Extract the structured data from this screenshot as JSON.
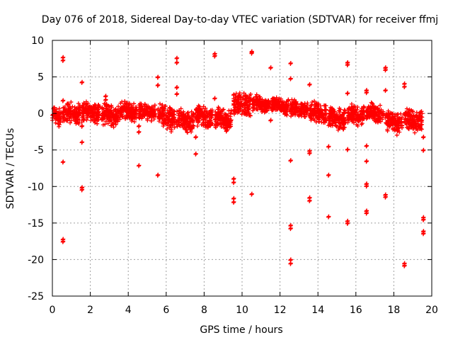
{
  "chart_data": {
    "type": "scatter",
    "title": "Day 076 of 2018, Sidereal Day-to-day VTEC variation (SDTVAR) for receiver ffmj",
    "xlabel": "GPS time / hours",
    "ylabel": "SDTVAR / TECUs",
    "xlim": [
      0,
      20
    ],
    "ylim": [
      -25,
      10
    ],
    "xticks": [
      0,
      2,
      4,
      6,
      8,
      10,
      12,
      14,
      16,
      18,
      20
    ],
    "yticks": [
      -25,
      -20,
      -15,
      -10,
      -5,
      0,
      5,
      10
    ],
    "grid": true,
    "marker": "plus",
    "color": "#ff0000",
    "band_segments": [
      {
        "x0": 0.0,
        "x1": 0.45,
        "center": -0.3,
        "spread": 1.5
      },
      {
        "x0": 0.55,
        "x1": 1.45,
        "center": 0.0,
        "spread": 1.6
      },
      {
        "x0": 1.55,
        "x1": 2.5,
        "center": 0.2,
        "spread": 1.5
      },
      {
        "x0": 2.6,
        "x1": 3.5,
        "center": -0.2,
        "spread": 1.7
      },
      {
        "x0": 3.55,
        "x1": 4.45,
        "center": 0.3,
        "spread": 1.4
      },
      {
        "x0": 4.55,
        "x1": 5.45,
        "center": 0.2,
        "spread": 1.2
      },
      {
        "x0": 5.55,
        "x1": 6.45,
        "center": -0.6,
        "spread": 1.8
      },
      {
        "x0": 6.55,
        "x1": 7.45,
        "center": -1.0,
        "spread": 1.6
      },
      {
        "x0": 7.55,
        "x1": 8.45,
        "center": -0.5,
        "spread": 1.6
      },
      {
        "x0": 8.55,
        "x1": 9.45,
        "center": -0.8,
        "spread": 1.6
      },
      {
        "x0": 9.55,
        "x1": 10.45,
        "center": 1.3,
        "spread": 1.8
      },
      {
        "x0": 10.55,
        "x1": 11.45,
        "center": 1.3,
        "spread": 1.2
      },
      {
        "x0": 11.55,
        "x1": 12.45,
        "center": 1.0,
        "spread": 1.2
      },
      {
        "x0": 12.55,
        "x1": 13.45,
        "center": 0.6,
        "spread": 1.3
      },
      {
        "x0": 13.55,
        "x1": 14.45,
        "center": 0.0,
        "spread": 1.5
      },
      {
        "x0": 14.55,
        "x1": 15.45,
        "center": -0.6,
        "spread": 1.6
      },
      {
        "x0": 15.55,
        "x1": 16.45,
        "center": -0.2,
        "spread": 1.5
      },
      {
        "x0": 16.55,
        "x1": 17.45,
        "center": 0.0,
        "spread": 1.4
      },
      {
        "x0": 17.55,
        "x1": 18.45,
        "center": -1.2,
        "spread": 1.6
      },
      {
        "x0": 18.55,
        "x1": 19.5,
        "center": -1.0,
        "spread": 1.6
      }
    ],
    "outliers": [
      {
        "x": 0.55,
        "y": 7.6
      },
      {
        "x": 0.55,
        "y": 7.2
      },
      {
        "x": 0.55,
        "y": 1.7
      },
      {
        "x": 0.55,
        "y": -6.7
      },
      {
        "x": 0.55,
        "y": -17.3
      },
      {
        "x": 0.55,
        "y": -17.6
      },
      {
        "x": 1.55,
        "y": 4.2
      },
      {
        "x": 1.55,
        "y": -4.0
      },
      {
        "x": 1.55,
        "y": -10.2
      },
      {
        "x": 1.55,
        "y": -10.5
      },
      {
        "x": 1.55,
        "y": -1.8
      },
      {
        "x": 2.8,
        "y": 2.3
      },
      {
        "x": 2.8,
        "y": 1.8
      },
      {
        "x": 4.55,
        "y": -1.8
      },
      {
        "x": 4.55,
        "y": -2.6
      },
      {
        "x": 4.55,
        "y": -7.2
      },
      {
        "x": 5.55,
        "y": 4.9
      },
      {
        "x": 5.55,
        "y": 3.8
      },
      {
        "x": 5.55,
        "y": -8.5
      },
      {
        "x": 6.55,
        "y": 7.5
      },
      {
        "x": 6.55,
        "y": 6.9
      },
      {
        "x": 6.55,
        "y": 3.5
      },
      {
        "x": 6.55,
        "y": 2.6
      },
      {
        "x": 7.55,
        "y": -3.3
      },
      {
        "x": 7.55,
        "y": -5.6
      },
      {
        "x": 8.55,
        "y": 8.1
      },
      {
        "x": 8.55,
        "y": 7.8
      },
      {
        "x": 8.55,
        "y": 2.0
      },
      {
        "x": 9.55,
        "y": 2.5
      },
      {
        "x": 9.55,
        "y": -9.0
      },
      {
        "x": 9.55,
        "y": -9.5
      },
      {
        "x": 9.55,
        "y": -11.7
      },
      {
        "x": 9.55,
        "y": -12.2
      },
      {
        "x": 10.5,
        "y": 8.4
      },
      {
        "x": 10.5,
        "y": 8.2
      },
      {
        "x": 10.5,
        "y": -11.1
      },
      {
        "x": 11.5,
        "y": 6.2
      },
      {
        "x": 11.5,
        "y": -1.0
      },
      {
        "x": 12.55,
        "y": 6.8
      },
      {
        "x": 12.55,
        "y": 4.7
      },
      {
        "x": 12.55,
        "y": -6.5
      },
      {
        "x": 12.55,
        "y": -15.4
      },
      {
        "x": 12.55,
        "y": -15.8
      },
      {
        "x": 12.55,
        "y": -20.1
      },
      {
        "x": 12.55,
        "y": -20.6
      },
      {
        "x": 13.55,
        "y": 3.9
      },
      {
        "x": 13.55,
        "y": -5.2
      },
      {
        "x": 13.55,
        "y": -5.5
      },
      {
        "x": 13.55,
        "y": -11.6
      },
      {
        "x": 13.55,
        "y": -12.0
      },
      {
        "x": 14.55,
        "y": -4.6
      },
      {
        "x": 14.55,
        "y": -8.5
      },
      {
        "x": 14.55,
        "y": -14.2
      },
      {
        "x": 15.55,
        "y": 6.9
      },
      {
        "x": 15.55,
        "y": 6.6
      },
      {
        "x": 15.55,
        "y": 2.7
      },
      {
        "x": 15.55,
        "y": -5.0
      },
      {
        "x": 15.55,
        "y": -14.8
      },
      {
        "x": 15.55,
        "y": -15.1
      },
      {
        "x": 16.55,
        "y": 3.1
      },
      {
        "x": 16.55,
        "y": 2.8
      },
      {
        "x": 16.55,
        "y": -4.5
      },
      {
        "x": 16.55,
        "y": -6.6
      },
      {
        "x": 16.55,
        "y": -9.7
      },
      {
        "x": 16.55,
        "y": -10.0
      },
      {
        "x": 16.55,
        "y": -13.4
      },
      {
        "x": 16.55,
        "y": -13.7
      },
      {
        "x": 17.55,
        "y": 6.2
      },
      {
        "x": 17.55,
        "y": 5.9
      },
      {
        "x": 17.55,
        "y": 3.1
      },
      {
        "x": 17.55,
        "y": -11.2
      },
      {
        "x": 17.55,
        "y": -11.5
      },
      {
        "x": 18.55,
        "y": 4.0
      },
      {
        "x": 18.55,
        "y": 3.6
      },
      {
        "x": 18.55,
        "y": -20.6
      },
      {
        "x": 18.55,
        "y": -20.9
      },
      {
        "x": 19.55,
        "y": -3.3
      },
      {
        "x": 19.55,
        "y": -5.1
      },
      {
        "x": 19.55,
        "y": -14.3
      },
      {
        "x": 19.55,
        "y": -14.6
      },
      {
        "x": 19.55,
        "y": -16.2
      },
      {
        "x": 19.55,
        "y": -16.5
      }
    ]
  }
}
